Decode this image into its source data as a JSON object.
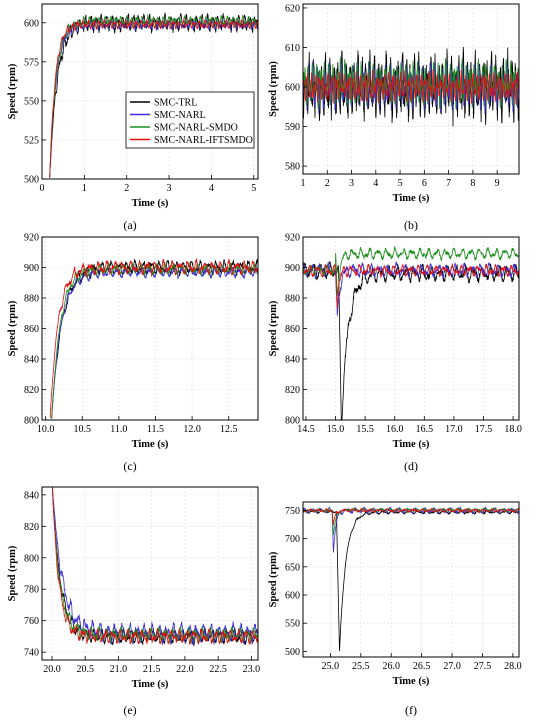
{
  "chart_data": [
    {
      "type": "line",
      "panel_label": "(a)",
      "xlabel": "Time (s)",
      "ylabel": "Speed (rpm)",
      "xlim": [
        0,
        5.1
      ],
      "ylim": [
        500,
        612
      ],
      "xticks": [
        0,
        1,
        2,
        3,
        4,
        5
      ],
      "yticks": [
        500,
        525,
        550,
        575,
        600
      ],
      "grid": true,
      "legend_position": "center-right",
      "legend": [
        "SMC-TRL",
        "SMC-NARL",
        "SMC-NARL-SMDO",
        "SMC-NARL-IFTSMDO"
      ],
      "series": [
        {
          "name": "SMC-TRL",
          "color": "#000000",
          "t0": 0.18,
          "base": 600,
          "start": 500,
          "rise": 0.18,
          "amp": 6,
          "freq": 8
        },
        {
          "name": "SMC-NARL",
          "color": "#3b2fd6",
          "t0": 0.18,
          "base": 599,
          "start": 500,
          "rise": 0.15,
          "amp": 3.5,
          "freq": 8
        },
        {
          "name": "SMC-NARL-SMDO",
          "color": "#1e8f1e",
          "t0": 0.18,
          "base": 601,
          "start": 500,
          "rise": 0.15,
          "amp": 3.5,
          "freq": 8
        },
        {
          "name": "SMC-NARL-IFTSMDO",
          "color": "#e01010",
          "t0": 0.18,
          "base": 599,
          "start": 500,
          "rise": 0.13,
          "amp": 3,
          "freq": 8
        }
      ]
    },
    {
      "type": "line",
      "panel_label": "(b)",
      "xlabel": "Time (s)",
      "ylabel": "Speed (rpm)",
      "xlim": [
        1,
        9.9
      ],
      "ylim": [
        578,
        621
      ],
      "xticks": [
        1,
        2,
        3,
        4,
        5,
        6,
        7,
        8,
        9
      ],
      "yticks": [
        580,
        590,
        600,
        610,
        620
      ],
      "grid": true,
      "series": [
        {
          "name": "SMC-TRL",
          "color": "#000000",
          "t0": -99,
          "base": 600,
          "start": 600,
          "rise": 1,
          "amp": 9,
          "freq": 6
        },
        {
          "name": "SMC-NARL",
          "color": "#3b2fd6",
          "t0": -99,
          "base": 600,
          "start": 600,
          "rise": 1,
          "amp": 6,
          "freq": 6
        },
        {
          "name": "SMC-NARL-SMDO",
          "color": "#1e8f1e",
          "t0": -99,
          "base": 601,
          "start": 601,
          "rise": 1,
          "amp": 6,
          "freq": 6
        },
        {
          "name": "SMC-NARL-IFTSMDO",
          "color": "#e01010",
          "t0": -99,
          "base": 600,
          "start": 600,
          "rise": 1,
          "amp": 4,
          "freq": 6
        }
      ]
    },
    {
      "type": "line",
      "panel_label": "(c)",
      "xlabel": "Time (s)",
      "ylabel": "Speed (rpm)",
      "xlim": [
        9.95,
        12.9
      ],
      "ylim": [
        800,
        920
      ],
      "xticks": [
        10.0,
        10.5,
        11.0,
        11.5,
        12.0,
        12.5
      ],
      "yticks": [
        800,
        820,
        840,
        860,
        880,
        900,
        920
      ],
      "grid": true,
      "series": [
        {
          "name": "SMC-TRL",
          "color": "#000000",
          "t0": 10.08,
          "base": 900,
          "start": 800,
          "rise": 0.14,
          "amp": 5,
          "freq": 9
        },
        {
          "name": "SMC-NARL",
          "color": "#3b2fd6",
          "t0": 10.08,
          "base": 897,
          "start": 800,
          "rise": 0.13,
          "amp": 4,
          "freq": 9
        },
        {
          "name": "SMC-NARL-SMDO",
          "color": "#1e8f1e",
          "t0": 10.08,
          "base": 899,
          "start": 800,
          "rise": 0.12,
          "amp": 4,
          "freq": 9
        },
        {
          "name": "SMC-NARL-IFTSMDO",
          "color": "#e01010",
          "t0": 10.06,
          "base": 900,
          "start": 800,
          "rise": 0.11,
          "amp": 5,
          "freq": 9
        }
      ]
    },
    {
      "type": "line",
      "panel_label": "(d)",
      "xlabel": "Time (s)",
      "ylabel": "Speed (rpm)",
      "xlim": [
        14.45,
        18.1
      ],
      "ylim": [
        800,
        920
      ],
      "xticks": [
        14.5,
        15.0,
        15.5,
        16.0,
        16.5,
        17.0,
        17.5,
        18.0
      ],
      "yticks": [
        800,
        820,
        840,
        860,
        880,
        900,
        920
      ],
      "grid": true,
      "series": [
        {
          "name": "SMC-TRL",
          "color": "#000000",
          "t0": -99,
          "base": 898,
          "start": 898,
          "rise": 1,
          "amp": 6,
          "freq": 7,
          "dip_t": 15.05,
          "dip_depth": 98,
          "dip_down": 0.05,
          "dip_up": 0.35,
          "base_after": 896
        },
        {
          "name": "SMC-NARL",
          "color": "#3b2fd6",
          "t0": -99,
          "base": 898,
          "start": 898,
          "rise": 1,
          "amp": 5,
          "freq": 7,
          "dip_t": 15.0,
          "dip_depth": 35,
          "dip_down": 0.03,
          "dip_up": 0.12,
          "base_after": 898
        },
        {
          "name": "SMC-NARL-SMDO",
          "color": "#1e8f1e",
          "t0": -99,
          "base": 898,
          "start": 898,
          "rise": 1,
          "amp": 4,
          "freq": 7,
          "dip_t": 15.0,
          "dip_depth": 30,
          "dip_down": 0.03,
          "dip_up": 0.12,
          "base_after": 909
        },
        {
          "name": "SMC-NARL-IFTSMDO",
          "color": "#e01010",
          "t0": -99,
          "base": 898,
          "start": 898,
          "rise": 1,
          "amp": 4,
          "freq": 7,
          "dip_t": 15.0,
          "dip_depth": 22,
          "dip_down": 0.03,
          "dip_up": 0.1,
          "base_after": 898
        }
      ]
    },
    {
      "type": "line",
      "panel_label": "(e)",
      "xlabel": "Time (s)",
      "ylabel": "Speed (rpm)",
      "xlim": [
        19.85,
        23.1
      ],
      "ylim": [
        735,
        845
      ],
      "xticks": [
        20.0,
        20.5,
        21.0,
        21.5,
        22.0,
        22.5,
        23.0
      ],
      "yticks": [
        740,
        760,
        780,
        800,
        820,
        840
      ],
      "grid": true,
      "series": [
        {
          "name": "SMC-TRL",
          "color": "#000000",
          "t0": 20.0,
          "base": 750,
          "start": 850,
          "rise": 0.12,
          "amp": 5,
          "freq": 9
        },
        {
          "name": "SMC-NARL",
          "color": "#3b2fd6",
          "t0": 20.0,
          "base": 752,
          "start": 850,
          "rise": 0.15,
          "amp": 7,
          "freq": 9
        },
        {
          "name": "SMC-NARL-SMDO",
          "color": "#1e8f1e",
          "t0": 20.0,
          "base": 751,
          "start": 850,
          "rise": 0.11,
          "amp": 5,
          "freq": 9
        },
        {
          "name": "SMC-NARL-IFTSMDO",
          "color": "#e01010",
          "t0": 20.0,
          "base": 750,
          "start": 850,
          "rise": 0.1,
          "amp": 5,
          "freq": 9
        }
      ]
    },
    {
      "type": "line",
      "panel_label": "(f)",
      "xlabel": "Time (s)",
      "ylabel": "Speed (rpm)",
      "xlim": [
        24.55,
        28.1
      ],
      "ylim": [
        490,
        765
      ],
      "xticks": [
        25.0,
        25.5,
        26.0,
        26.5,
        27.0,
        27.5,
        28.0
      ],
      "yticks": [
        500,
        550,
        600,
        650,
        700,
        750
      ],
      "grid": true,
      "series": [
        {
          "name": "SMC-TRL",
          "color": "#000000",
          "t0": -99,
          "base": 748,
          "start": 748,
          "rise": 1,
          "amp": 3,
          "freq": 7,
          "dip_t": 25.1,
          "dip_depth": 250,
          "dip_down": 0.05,
          "dip_up": 0.3,
          "base_after": 747
        },
        {
          "name": "SMC-NARL",
          "color": "#3b2fd6",
          "t0": -99,
          "base": 750,
          "start": 750,
          "rise": 1,
          "amp": 5,
          "freq": 7,
          "dip_t": 25.03,
          "dip_depth": 75,
          "dip_down": 0.02,
          "dip_up": 0.12,
          "base_after": 750
        },
        {
          "name": "SMC-NARL-SMDO",
          "color": "#1e8f1e",
          "t0": -99,
          "base": 750,
          "start": 750,
          "rise": 1,
          "amp": 3,
          "freq": 7,
          "dip_t": 25.03,
          "dip_depth": 45,
          "dip_down": 0.02,
          "dip_up": 0.12,
          "base_after": 751
        },
        {
          "name": "SMC-NARL-IFTSMDO",
          "color": "#e01010",
          "t0": -99,
          "base": 750,
          "start": 750,
          "rise": 1,
          "amp": 3,
          "freq": 7,
          "dip_t": 25.03,
          "dip_depth": 25,
          "dip_down": 0.02,
          "dip_up": 0.1,
          "base_after": 750
        }
      ]
    }
  ]
}
